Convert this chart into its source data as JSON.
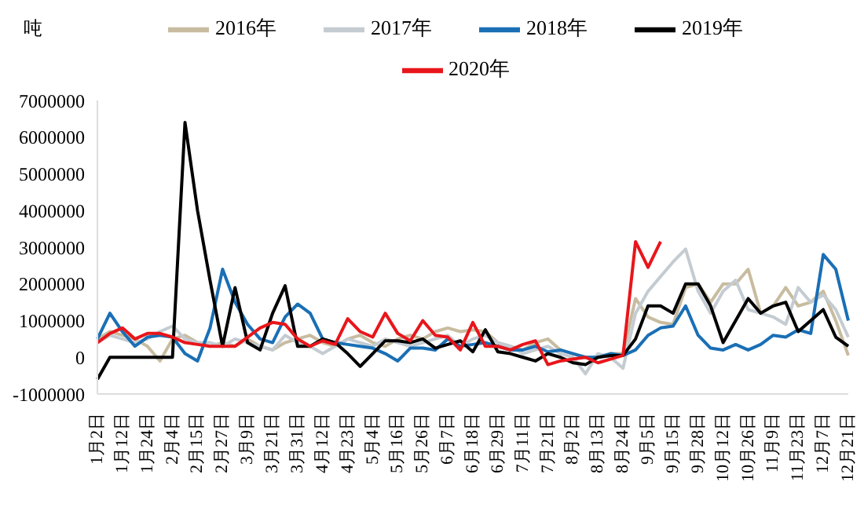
{
  "chart_data": {
    "type": "line",
    "ylabel": "吨",
    "categories": [
      "1月2日",
      null,
      "1月12日",
      null,
      "1月24日",
      null,
      "2月4日",
      null,
      "2月15日",
      null,
      "2月27日",
      null,
      "3月9日",
      null,
      "3月21日",
      null,
      "3月31日",
      null,
      "4月12日",
      null,
      "4月23日",
      null,
      "5月4日",
      null,
      "5月16日",
      null,
      "5月26日",
      null,
      "6月7日",
      null,
      "6月18日",
      null,
      "6月29日",
      null,
      "7月11日",
      null,
      "7月21日",
      null,
      "8月2日",
      null,
      "8月13日",
      null,
      "8月24日",
      null,
      "9月5日",
      null,
      "9月15日",
      null,
      "9月28日",
      null,
      "10月12日",
      null,
      "10月26日",
      null,
      "11月9日",
      null,
      "11月23日",
      null,
      "12月7日",
      null,
      "12月21日"
    ],
    "series": [
      {
        "name": "2016年",
        "color": "#c8bca0",
        "values": [
          500000,
          700000,
          600000,
          500000,
          300000,
          -100000,
          500000,
          600000,
          400000,
          300000,
          400000,
          300000,
          500000,
          300000,
          200000,
          400000,
          500000,
          600000,
          400000,
          300000,
          500000,
          600000,
          400000,
          300000,
          500000,
          600000,
          500000,
          700000,
          800000,
          700000,
          750000,
          700000,
          400000,
          300000,
          200000,
          400000,
          500000,
          200000,
          100000,
          0,
          0,
          100000,
          100000,
          1600000,
          1100000,
          950000,
          900000,
          1900000,
          2000000,
          1500000,
          2000000,
          2000000,
          2400000,
          1200000,
          1400000,
          1900000,
          1400000,
          1500000,
          1800000,
          1000000,
          50000
        ]
      },
      {
        "name": "2017年",
        "color": "#c4ccd2",
        "values": [
          400000,
          600000,
          500000,
          400000,
          500000,
          700000,
          850000,
          500000,
          400000,
          400000,
          300000,
          500000,
          400000,
          300000,
          200000,
          600000,
          400000,
          300000,
          100000,
          300000,
          500000,
          400000,
          300000,
          500000,
          400000,
          300000,
          400000,
          500000,
          600000,
          300000,
          500000,
          600000,
          400000,
          300000,
          100000,
          200000,
          300000,
          100000,
          0,
          -450000,
          100000,
          0,
          -300000,
          1200000,
          1800000,
          2200000,
          2600000,
          2950000,
          1800000,
          1200000,
          1800000,
          2100000,
          1300000,
          1200000,
          1100000,
          900000,
          1900000,
          1500000,
          1700000,
          1300000,
          550000
        ]
      },
      {
        "name": "2018年",
        "color": "#1a6fb5",
        "values": [
          500000,
          1200000,
          700000,
          300000,
          550000,
          600000,
          550000,
          100000,
          -100000,
          800000,
          2400000,
          1500000,
          900000,
          500000,
          400000,
          1100000,
          1450000,
          1200000,
          500000,
          400000,
          350000,
          300000,
          250000,
          100000,
          -100000,
          250000,
          250000,
          200000,
          500000,
          300000,
          350000,
          400000,
          300000,
          200000,
          200000,
          300000,
          150000,
          200000,
          100000,
          0,
          0,
          100000,
          50000,
          200000,
          600000,
          800000,
          850000,
          1400000,
          600000,
          250000,
          200000,
          350000,
          200000,
          350000,
          600000,
          550000,
          750000,
          650000,
          2800000,
          2400000,
          1000000
        ]
      },
      {
        "name": "2019年",
        "color": "#000000",
        "values": [
          -600000,
          0,
          0,
          0,
          0,
          0,
          0,
          6400000,
          4000000,
          2100000,
          300000,
          1900000,
          400000,
          200000,
          1200000,
          1950000,
          300000,
          300000,
          500000,
          400000,
          100000,
          -250000,
          100000,
          450000,
          450000,
          400000,
          500000,
          250000,
          350000,
          450000,
          150000,
          750000,
          150000,
          100000,
          0,
          -100000,
          100000,
          0,
          -150000,
          -200000,
          0,
          50000,
          50000,
          500000,
          1400000,
          1400000,
          1200000,
          2000000,
          2000000,
          1400000,
          400000,
          1000000,
          1600000,
          1200000,
          1400000,
          1500000,
          700000,
          1000000,
          1300000,
          550000,
          300000
        ]
      },
      {
        "name": "2020年",
        "color": "#e8161b",
        "values": [
          400000,
          650000,
          800000,
          500000,
          650000,
          650000,
          550000,
          400000,
          350000,
          300000,
          300000,
          300000,
          550000,
          800000,
          950000,
          900000,
          500000,
          300000,
          450000,
          350000,
          1050000,
          700000,
          550000,
          1200000,
          650000,
          450000,
          1000000,
          600000,
          550000,
          200000,
          950000,
          300000,
          300000,
          200000,
          350000,
          450000,
          -200000,
          -100000,
          -50000,
          0,
          -150000,
          -50000,
          50000,
          3150000,
          2450000,
          3150000,
          null,
          null,
          null,
          null,
          null,
          null,
          null,
          null,
          null,
          null,
          null,
          null,
          null,
          null,
          null
        ]
      }
    ],
    "ylim": [
      -1000000,
      7000000
    ],
    "yticks": [
      -1000000,
      0,
      1000000,
      2000000,
      3000000,
      4000000,
      5000000,
      6000000,
      7000000
    ],
    "grid": false,
    "legend": "top",
    "marker": "none",
    "line_style": "solid"
  }
}
